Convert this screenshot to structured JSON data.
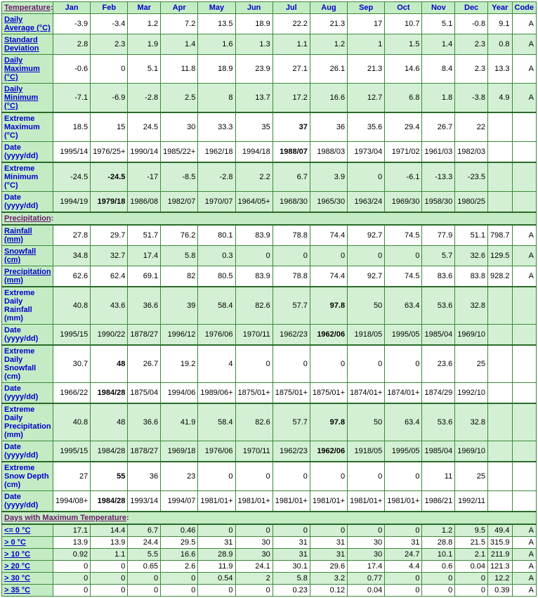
{
  "columns": [
    "Jan",
    "Feb",
    "Mar",
    "Apr",
    "May",
    "Jun",
    "Jul",
    "Aug",
    "Sep",
    "Oct",
    "Nov",
    "Dec",
    "Year",
    "Code"
  ],
  "sections": [
    {
      "title": "Temperature",
      "link": true,
      "suffix": ":",
      "rows": [
        {
          "label": "Daily Average (°C)",
          "link": true,
          "shade": "light",
          "cells": [
            "-3.9",
            "-3.4",
            "1.2",
            "7.2",
            "13.5",
            "18.9",
            "22.2",
            "21.3",
            "17",
            "10.7",
            "5.1",
            "-0.8",
            "9.1",
            "A"
          ]
        },
        {
          "label": "Standard Deviation",
          "link": true,
          "shade": "dark",
          "cells": [
            "2.8",
            "2.3",
            "1.9",
            "1.4",
            "1.6",
            "1.3",
            "1.1",
            "1.2",
            "1",
            "1.5",
            "1.4",
            "2.3",
            "0.8",
            "A"
          ]
        },
        {
          "label": "Daily Maximum (°C)",
          "link": true,
          "shade": "light",
          "cells": [
            "-0.6",
            "0",
            "5.1",
            "11.8",
            "18.9",
            "23.9",
            "27.1",
            "26.1",
            "21.3",
            "14.6",
            "8.4",
            "2.3",
            "13.3",
            "A"
          ]
        },
        {
          "label": "Daily Minimum (°C)",
          "link": true,
          "shade": "dark",
          "thickBottom": true,
          "cells": [
            "-7.1",
            "-6.9",
            "-2.8",
            "2.5",
            "8",
            "13.7",
            "17.2",
            "16.6",
            "12.7",
            "6.8",
            "1.8",
            "-3.8",
            "4.9",
            "A"
          ]
        },
        {
          "label": "Extreme Maximum (°C)",
          "link": false,
          "shade": "light",
          "cells": [
            "18.5",
            "15",
            "24.5",
            "30",
            "33.3",
            "35",
            "37",
            "36",
            "35.6",
            "29.4",
            "26.7",
            "22",
            "",
            ""
          ],
          "bold": [
            6
          ]
        },
        {
          "label": "Date (yyyy/dd)",
          "link": false,
          "shade": "light",
          "thickBottom": true,
          "cells": [
            "1995/14",
            "1976/25+",
            "1990/14",
            "1985/22+",
            "1962/18",
            "1994/18",
            "1988/07",
            "1988/03",
            "1973/04",
            "1971/02",
            "1961/03",
            "1982/03",
            "",
            ""
          ],
          "bold": [
            6
          ]
        },
        {
          "label": "Extreme Minimum (°C)",
          "link": false,
          "shade": "dark",
          "cells": [
            "-24.5",
            "-24.5",
            "-17",
            "-8.5",
            "-2.8",
            "2.2",
            "6.7",
            "3.9",
            "0",
            "-6.1",
            "-13.3",
            "-23.5",
            "",
            ""
          ],
          "bold": [
            1
          ]
        },
        {
          "label": "Date (yyyy/dd)",
          "link": false,
          "shade": "dark",
          "thickBottom": true,
          "cells": [
            "1994/19",
            "1979/18",
            "1986/08",
            "1982/07",
            "1970/07",
            "1964/05+",
            "1968/30",
            "1965/30",
            "1963/24",
            "1969/30",
            "1958/30",
            "1980/25",
            "",
            ""
          ],
          "bold": [
            1
          ]
        }
      ]
    },
    {
      "title": "Precipitation",
      "link": true,
      "suffix": ":",
      "rows": [
        {
          "label": "Rainfall (mm)",
          "link": true,
          "shade": "light",
          "cells": [
            "27.8",
            "29.7",
            "51.7",
            "76.2",
            "80.1",
            "83.9",
            "78.8",
            "74.4",
            "92.7",
            "74.5",
            "77.9",
            "51.1",
            "798.7",
            "A"
          ]
        },
        {
          "label": "Snowfall (cm)",
          "link": true,
          "shade": "dark",
          "cells": [
            "34.8",
            "32.7",
            "17.4",
            "5.8",
            "0.3",
            "0",
            "0",
            "0",
            "0",
            "0",
            "5.7",
            "32.6",
            "129.5",
            "A"
          ]
        },
        {
          "label": "Precipitation (mm)",
          "link": true,
          "shade": "light",
          "thickBottom": true,
          "cells": [
            "62.6",
            "62.4",
            "69.1",
            "82",
            "80.5",
            "83.9",
            "78.8",
            "74.4",
            "92.7",
            "74.5",
            "83.6",
            "83.8",
            "928.2",
            "A"
          ]
        },
        {
          "label": "Extreme Daily Rainfall (mm)",
          "link": false,
          "shade": "dark",
          "cells": [
            "40.8",
            "43.6",
            "36.6",
            "39",
            "58.4",
            "82.6",
            "57.7",
            "97.8",
            "50",
            "63.4",
            "53.6",
            "32.8",
            "",
            ""
          ],
          "bold": [
            7
          ]
        },
        {
          "label": "Date (yyyy/dd)",
          "link": false,
          "shade": "dark",
          "thickBottom": true,
          "cells": [
            "1995/15",
            "1990/22",
            "1878/27",
            "1996/12",
            "1976/06",
            "1970/11",
            "1962/23",
            "1962/06",
            "1918/05",
            "1995/05",
            "1985/04",
            "1969/10",
            "",
            ""
          ],
          "bold": [
            7
          ]
        },
        {
          "label": "Extreme Daily Snowfall (cm)",
          "link": false,
          "shade": "light",
          "cells": [
            "30.7",
            "48",
            "26.7",
            "19.2",
            "4",
            "0",
            "0",
            "0",
            "0",
            "0",
            "23.6",
            "25",
            "",
            ""
          ],
          "bold": [
            1
          ]
        },
        {
          "label": "Date (yyyy/dd)",
          "link": false,
          "shade": "light",
          "thickBottom": true,
          "cells": [
            "1966/22",
            "1984/28",
            "1875/04",
            "1994/06",
            "1989/06+",
            "1875/01+",
            "1875/01+",
            "1875/01+",
            "1874/01+",
            "1874/01+",
            "1874/29",
            "1992/10",
            "",
            ""
          ],
          "bold": [
            1
          ]
        },
        {
          "label": "Extreme Daily Precipitation (mm)",
          "link": false,
          "shade": "dark",
          "cells": [
            "40.8",
            "48",
            "36.6",
            "41.9",
            "58.4",
            "82.6",
            "57.7",
            "97.8",
            "50",
            "63.4",
            "53.6",
            "32.8",
            "",
            ""
          ],
          "bold": [
            7
          ]
        },
        {
          "label": "Date (yyyy/dd)",
          "link": false,
          "shade": "dark",
          "thickBottom": true,
          "cells": [
            "1995/15",
            "1984/28",
            "1878/27",
            "1969/18",
            "1976/06",
            "1970/11",
            "1962/23",
            "1962/06",
            "1918/05",
            "1995/05",
            "1985/04",
            "1969/10",
            "",
            ""
          ],
          "bold": [
            7
          ]
        },
        {
          "label": "Extreme Snow Depth (cm)",
          "link": false,
          "shade": "light",
          "cells": [
            "27",
            "55",
            "36",
            "23",
            "0",
            "0",
            "0",
            "0",
            "0",
            "0",
            "11",
            "25",
            "",
            ""
          ],
          "bold": [
            1
          ]
        },
        {
          "label": "Date (yyyy/dd)",
          "link": false,
          "shade": "light",
          "thickBottom": true,
          "cells": [
            "1994/08+",
            "1984/28",
            "1993/14",
            "1994/07",
            "1981/01+",
            "1981/01+",
            "1981/01+",
            "1981/01+",
            "1981/01+",
            "1981/01+",
            "1986/21",
            "1992/11",
            "",
            ""
          ],
          "bold": [
            1
          ]
        }
      ]
    },
    {
      "title": "Days with Maximum Temperature",
      "link": true,
      "suffix": ":",
      "rows": [
        {
          "label": "<= 0 °C",
          "link": true,
          "shade": "dark",
          "cells": [
            "17.1",
            "14.4",
            "6.7",
            "0.46",
            "0",
            "0",
            "0",
            "0",
            "0",
            "0",
            "1.2",
            "9.5",
            "49.4",
            "A"
          ]
        },
        {
          "label": "> 0 °C",
          "link": true,
          "shade": "light",
          "cells": [
            "13.9",
            "13.9",
            "24.4",
            "29.5",
            "31",
            "30",
            "31",
            "31",
            "30",
            "31",
            "28.8",
            "21.5",
            "315.9",
            "A"
          ]
        },
        {
          "label": "> 10 °C",
          "link": true,
          "shade": "dark",
          "cells": [
            "0.92",
            "1.1",
            "5.5",
            "16.6",
            "28.9",
            "30",
            "31",
            "31",
            "30",
            "24.7",
            "10.1",
            "2.1",
            "211.9",
            "A"
          ]
        },
        {
          "label": "> 20 °C",
          "link": true,
          "shade": "light",
          "cells": [
            "0",
            "0",
            "0.65",
            "2.6",
            "11.9",
            "24.1",
            "30.1",
            "29.6",
            "17.4",
            "4.4",
            "0.6",
            "0.04",
            "121.3",
            "A"
          ]
        },
        {
          "label": "> 30 °C",
          "link": true,
          "shade": "dark",
          "cells": [
            "0",
            "0",
            "0",
            "0",
            "0.54",
            "2",
            "5.8",
            "3.2",
            "0.77",
            "0",
            "0",
            "0",
            "12.2",
            "A"
          ]
        },
        {
          "label": "> 35 °C",
          "link": true,
          "shade": "light",
          "cells": [
            "0",
            "0",
            "0",
            "0",
            "0",
            "0",
            "0.23",
            "0.12",
            "0.04",
            "0",
            "0",
            "0",
            "0.39",
            "A"
          ]
        }
      ]
    }
  ]
}
